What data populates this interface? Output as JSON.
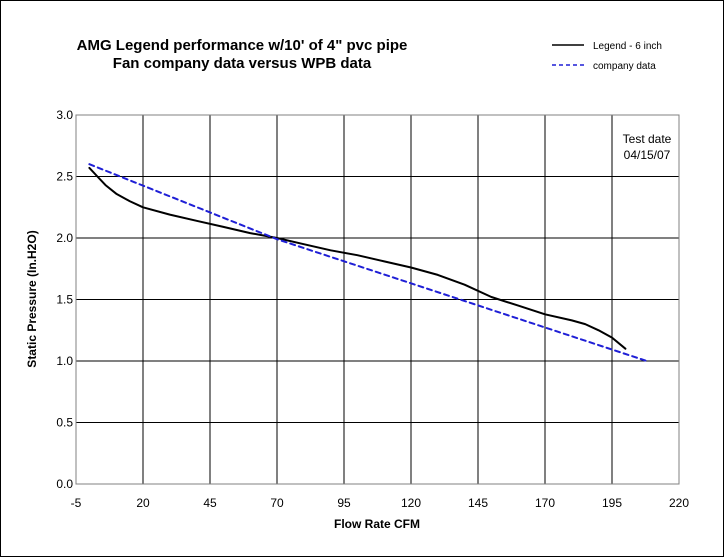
{
  "chart_data": {
    "type": "line",
    "title": "AMG Legend performance w/10' of 4\" pvc pipe",
    "subtitle": "Fan company data versus WPB data",
    "xlabel": "Flow Rate CFM",
    "ylabel": "Static Pressure (In.H2O)",
    "xlim": [
      -5,
      220
    ],
    "ylim": [
      0,
      3.0
    ],
    "x_ticks": [
      -5,
      20,
      45,
      70,
      95,
      120,
      145,
      170,
      195,
      220
    ],
    "x_tick_labels": [
      "-5",
      "20",
      "45",
      "70",
      "95",
      "120",
      "145",
      "170",
      "195",
      "220"
    ],
    "y_ticks": [
      0,
      0.5,
      1,
      1.5,
      2,
      2.5,
      3
    ],
    "y_tick_labels": [
      "0.0",
      "0.5",
      "1.0",
      "1.5",
      "2.0",
      "2.5",
      "3.0"
    ],
    "grid": true,
    "legend_position": "top-right",
    "annotation": [
      "Test date",
      "04/15/07"
    ],
    "series": [
      {
        "name": "Legend - 6 inch",
        "color": "#000000",
        "style": "solid",
        "x": [
          0,
          3,
          6,
          10,
          15,
          20,
          30,
          40,
          50,
          60,
          70,
          80,
          90,
          100,
          110,
          120,
          130,
          140,
          150,
          160,
          170,
          180,
          185,
          190,
          195,
          200
        ],
        "y": [
          2.57,
          2.5,
          2.43,
          2.36,
          2.3,
          2.25,
          2.19,
          2.14,
          2.09,
          2.04,
          2.0,
          1.95,
          1.9,
          1.86,
          1.81,
          1.76,
          1.7,
          1.62,
          1.52,
          1.45,
          1.38,
          1.33,
          1.3,
          1.25,
          1.19,
          1.1
        ]
      },
      {
        "name": "company data",
        "color": "#1f1fd6",
        "style": "dashed",
        "x": [
          0,
          70,
          208
        ],
        "y": [
          2.6,
          1.99,
          1.0
        ]
      }
    ]
  }
}
